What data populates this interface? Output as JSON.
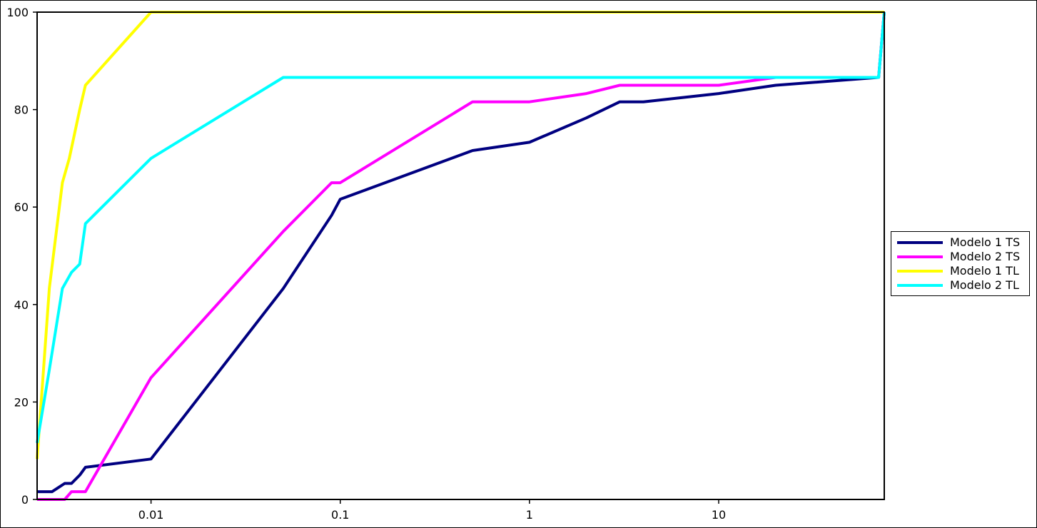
{
  "chart_data": {
    "type": "line",
    "title": "",
    "xlabel": "",
    "ylabel": "",
    "x_scale": "log",
    "xlim": [
      0.0025,
      75
    ],
    "ylim": [
      0,
      100
    ],
    "grid": false,
    "legend_position": "right",
    "x_tick_labels": [
      "0.01",
      "0.1",
      "1",
      "10"
    ],
    "x_ticks": [
      0.01,
      0.1,
      1,
      10
    ],
    "y_tick_labels": [
      "0",
      "20",
      "40",
      "60",
      "80",
      "100"
    ],
    "y_ticks": [
      0,
      20,
      40,
      60,
      80,
      100
    ],
    "series": [
      {
        "name": "Modelo 1 TS",
        "color": "#000080",
        "points": [
          [
            0.0025,
            1.6
          ],
          [
            0.003,
            1.6
          ],
          [
            0.0035,
            3.3
          ],
          [
            0.0038,
            3.3
          ],
          [
            0.0042,
            5
          ],
          [
            0.0045,
            6.6
          ],
          [
            0.01,
            8.3
          ],
          [
            0.05,
            43.3
          ],
          [
            0.09,
            58.3
          ],
          [
            0.1,
            61.6
          ],
          [
            0.5,
            71.6
          ],
          [
            1,
            73.3
          ],
          [
            2,
            78.3
          ],
          [
            3,
            81.6
          ],
          [
            4,
            81.6
          ],
          [
            10,
            83.3
          ],
          [
            20,
            85
          ],
          [
            70,
            86.6
          ],
          [
            75,
            100
          ]
        ]
      },
      {
        "name": "Modelo 2 TS",
        "color": "#ff00ff",
        "points": [
          [
            0.0025,
            0
          ],
          [
            0.0035,
            0
          ],
          [
            0.0038,
            1.6
          ],
          [
            0.0045,
            1.6
          ],
          [
            0.01,
            25
          ],
          [
            0.05,
            55
          ],
          [
            0.09,
            65
          ],
          [
            0.1,
            65
          ],
          [
            0.5,
            81.6
          ],
          [
            1,
            81.6
          ],
          [
            2,
            83.3
          ],
          [
            3,
            85
          ],
          [
            10,
            85
          ],
          [
            20,
            86.6
          ],
          [
            70,
            86.6
          ],
          [
            75,
            100
          ]
        ]
      },
      {
        "name": "Modelo 1 TL",
        "color": "#ffff00",
        "points": [
          [
            0.0025,
            8.3
          ],
          [
            0.0029,
            43.3
          ],
          [
            0.0034,
            65
          ],
          [
            0.0037,
            70
          ],
          [
            0.0042,
            80
          ],
          [
            0.0045,
            85
          ],
          [
            0.01,
            100
          ],
          [
            75,
            100
          ]
        ]
      },
      {
        "name": "Modelo 2 TL",
        "color": "#00ffff",
        "points": [
          [
            0.0025,
            11.6
          ],
          [
            0.0029,
            26.6
          ],
          [
            0.0034,
            43.3
          ],
          [
            0.0038,
            46.6
          ],
          [
            0.0042,
            48.3
          ],
          [
            0.0045,
            56.6
          ],
          [
            0.01,
            70
          ],
          [
            0.05,
            86.6
          ],
          [
            70,
            86.6
          ],
          [
            75,
            100
          ]
        ]
      }
    ]
  }
}
